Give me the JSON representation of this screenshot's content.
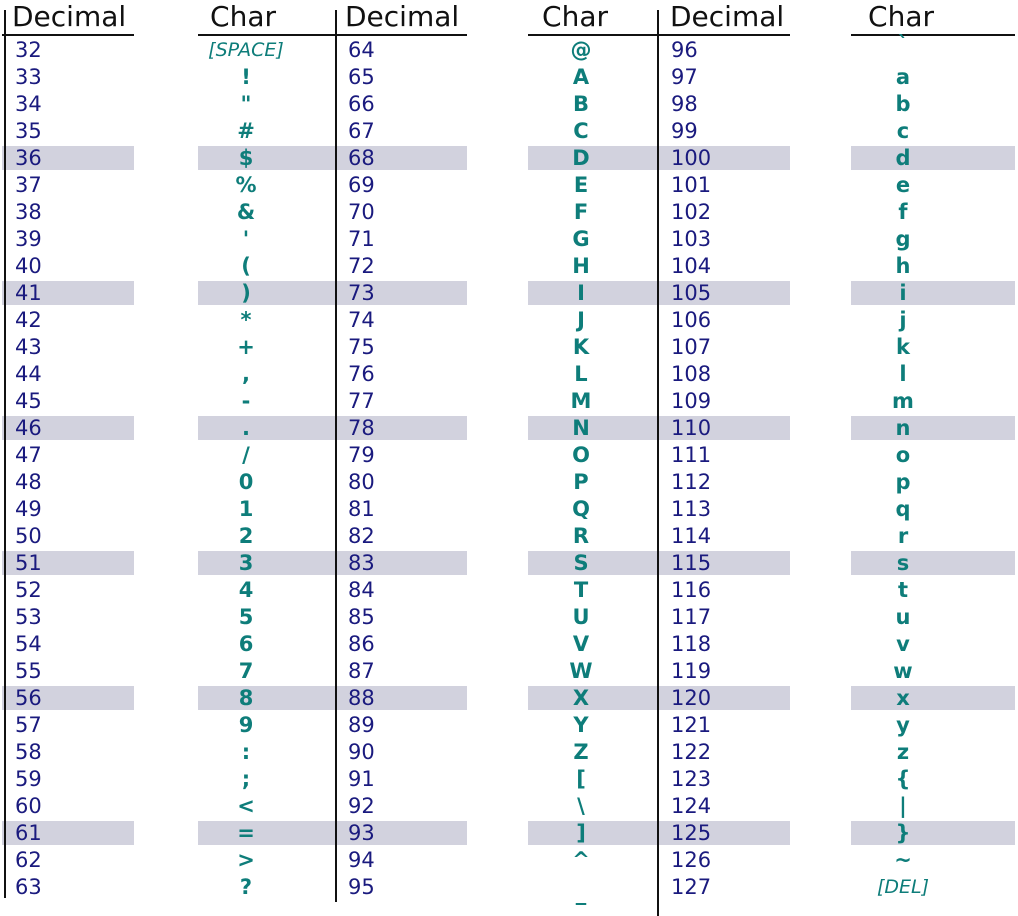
{
  "headers": {
    "decimal": "Decimal",
    "char": "Char"
  },
  "highlight_color": "#d2d2de",
  "decimal_color": "#1a1a7e",
  "char_color": "#0e7d7a",
  "tables": [
    {
      "decimals": [
        "32",
        "33",
        "34",
        "35",
        "36",
        "37",
        "38",
        "39",
        "40",
        "41",
        "42",
        "43",
        "44",
        "45",
        "46",
        "47",
        "48",
        "49",
        "50",
        "51",
        "52",
        "53",
        "54",
        "55",
        "56",
        "57",
        "58",
        "59",
        "60",
        "61",
        "62",
        "63"
      ],
      "chars": [
        "[SPACE]",
        "!",
        "\"",
        "#",
        "$",
        "%",
        "&",
        "'",
        "(",
        ")",
        "*",
        "+",
        ",",
        "-",
        ".",
        "/",
        "0",
        "1",
        "2",
        "3",
        "4",
        "5",
        "6",
        "7",
        "8",
        "9",
        ":",
        ";",
        "<",
        "=",
        ">",
        "?"
      ]
    },
    {
      "decimals": [
        "64",
        "65",
        "66",
        "67",
        "68",
        "69",
        "70",
        "71",
        "72",
        "73",
        "74",
        "75",
        "76",
        "77",
        "78",
        "79",
        "80",
        "81",
        "82",
        "83",
        "84",
        "85",
        "86",
        "87",
        "88",
        "89",
        "90",
        "91",
        "92",
        "93",
        "94",
        "95"
      ],
      "chars": [
        "@",
        "A",
        "B",
        "C",
        "D",
        "E",
        "F",
        "G",
        "H",
        "I",
        "J",
        "K",
        "L",
        "M",
        "N",
        "O",
        "P",
        "Q",
        "R",
        "S",
        "T",
        "U",
        "V",
        "W",
        "X",
        "Y",
        "Z",
        "[",
        "\\",
        "]",
        "^",
        "_"
      ]
    },
    {
      "decimals": [
        "96",
        "97",
        "98",
        "99",
        "100",
        "101",
        "102",
        "103",
        "104",
        "105",
        "106",
        "107",
        "108",
        "109",
        "110",
        "111",
        "112",
        "113",
        "114",
        "115",
        "116",
        "117",
        "118",
        "119",
        "120",
        "121",
        "122",
        "123",
        "124",
        "125",
        "126",
        "127"
      ],
      "chars": [
        "`",
        "a",
        "b",
        "c",
        "d",
        "e",
        "f",
        "g",
        "h",
        "i",
        "j",
        "k",
        "l",
        "m",
        "n",
        "o",
        "p",
        "q",
        "r",
        "s",
        "t",
        "u",
        "v",
        "w",
        "x",
        "y",
        "z",
        "{",
        "|",
        "}",
        "~",
        "[DEL]"
      ]
    }
  ],
  "highlighted_rows": [
    4,
    9,
    14,
    19,
    24,
    29
  ]
}
